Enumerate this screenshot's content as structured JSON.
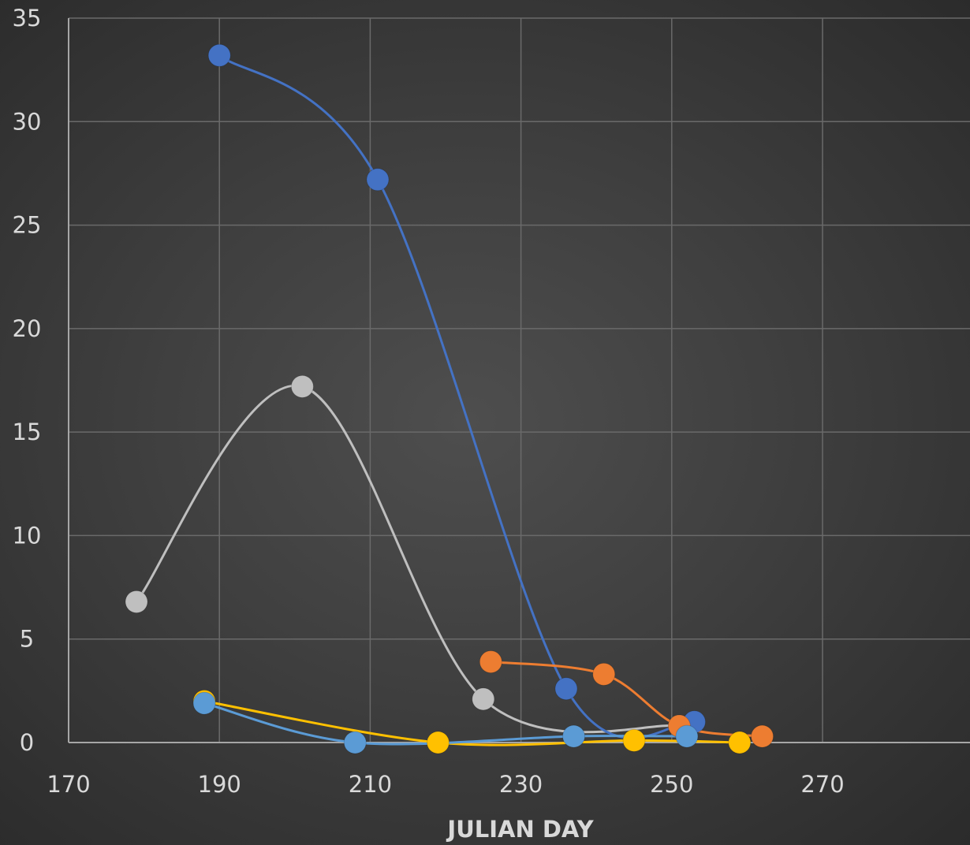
{
  "chart_data": {
    "type": "scatter",
    "line_style": "smoothed lines with markers",
    "background": "dark gradient",
    "title": "",
    "xlabel": "JULIAN DAY",
    "ylabel": "",
    "xlim": [
      170,
      280
    ],
    "ylim": [
      0,
      35
    ],
    "x_ticks": [
      170,
      190,
      210,
      230,
      250,
      270
    ],
    "y_ticks": [
      0,
      5,
      10,
      15,
      20,
      25,
      30,
      35
    ],
    "grid": true,
    "legend": "none",
    "series": [
      {
        "color": "#bfbfbf",
        "points": [
          [
            179,
            6.8
          ],
          [
            201,
            17.2
          ],
          [
            225,
            2.1
          ],
          [
            251,
            0.8
          ]
        ]
      },
      {
        "color": "#4472c4",
        "points": [
          [
            190,
            33.2
          ],
          [
            211,
            27.2
          ],
          [
            236,
            2.6
          ],
          [
            253,
            1.0
          ]
        ]
      },
      {
        "color": "#ed7d31",
        "points": [
          [
            226,
            3.9
          ],
          [
            241,
            3.3
          ],
          [
            251,
            0.8
          ],
          [
            262,
            0.3
          ]
        ]
      },
      {
        "color": "#ffc000",
        "points": [
          [
            188,
            2.0
          ],
          [
            219,
            0.0
          ],
          [
            245,
            0.1
          ],
          [
            259,
            0.0
          ]
        ]
      },
      {
        "color": "#5b9bd5",
        "points": [
          [
            188,
            1.9
          ],
          [
            208,
            0.0
          ],
          [
            237,
            0.3
          ],
          [
            252,
            0.3
          ]
        ]
      }
    ]
  }
}
